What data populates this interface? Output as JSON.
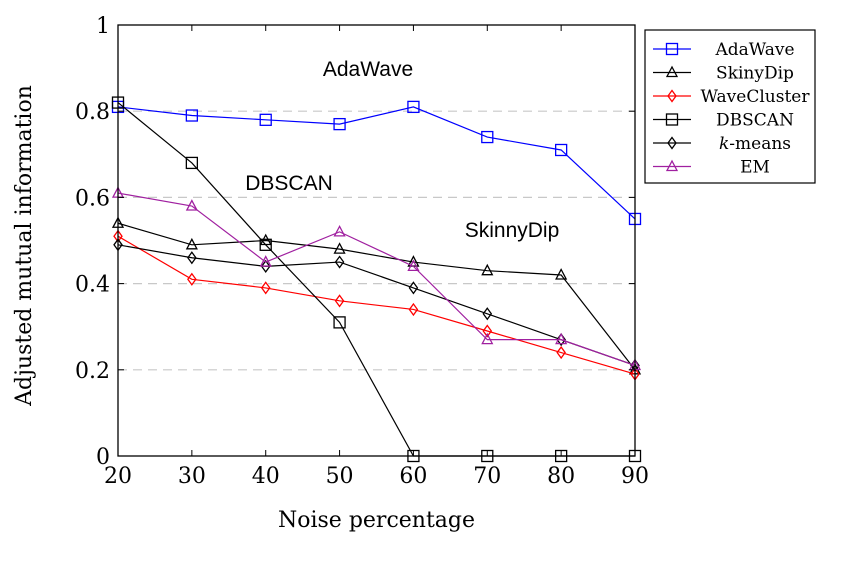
{
  "chart_data": {
    "type": "line",
    "xlabel": "Noise percentage",
    "ylabel": "Adjusted mutual information",
    "x": [
      20,
      30,
      40,
      50,
      60,
      70,
      80,
      90
    ],
    "xlim": [
      20,
      90
    ],
    "ylim": [
      0,
      1
    ],
    "xticks": [
      "20",
      "30",
      "40",
      "50",
      "60",
      "70",
      "80",
      "90"
    ],
    "yticks": [
      "0",
      "0.2",
      "0.4",
      "0.6",
      "0.8",
      "1"
    ],
    "grid": "horizontal dashed",
    "legend_position": "top-right, outside plot",
    "series": [
      {
        "name": "AdaWave",
        "color": "#0000ff",
        "marker": "square",
        "values": [
          0.81,
          0.79,
          0.78,
          0.77,
          0.81,
          0.74,
          0.71,
          0.55
        ]
      },
      {
        "name": "SkinyDip",
        "color": "#000000",
        "marker": "triangle",
        "values": [
          0.54,
          0.49,
          0.5,
          0.48,
          0.45,
          0.43,
          0.42,
          0.2
        ]
      },
      {
        "name": "WaveCluster",
        "color": "#ff0000",
        "marker": "diamond",
        "values": [
          0.51,
          0.41,
          0.39,
          0.36,
          0.34,
          0.29,
          0.24,
          0.19
        ]
      },
      {
        "name": "DBSCAN",
        "color": "#000000",
        "marker": "square",
        "values": [
          0.82,
          0.68,
          0.49,
          0.31,
          0.0,
          0.0,
          0.0,
          0.0
        ]
      },
      {
        "name": "k-means",
        "name_italic_part": "k",
        "name_rest": "-means",
        "color": "#000000",
        "marker": "diamond",
        "values": [
          0.49,
          0.46,
          0.44,
          0.45,
          0.39,
          0.33,
          0.27,
          0.21
        ]
      },
      {
        "name": "EM",
        "color": "#a020a0",
        "marker": "triangle",
        "values": [
          0.61,
          0.58,
          0.45,
          0.52,
          0.44,
          0.27,
          0.27,
          0.21
        ]
      }
    ],
    "annotations": [
      "AdaWave",
      "DBSCAN",
      "SkinnyDip"
    ]
  }
}
